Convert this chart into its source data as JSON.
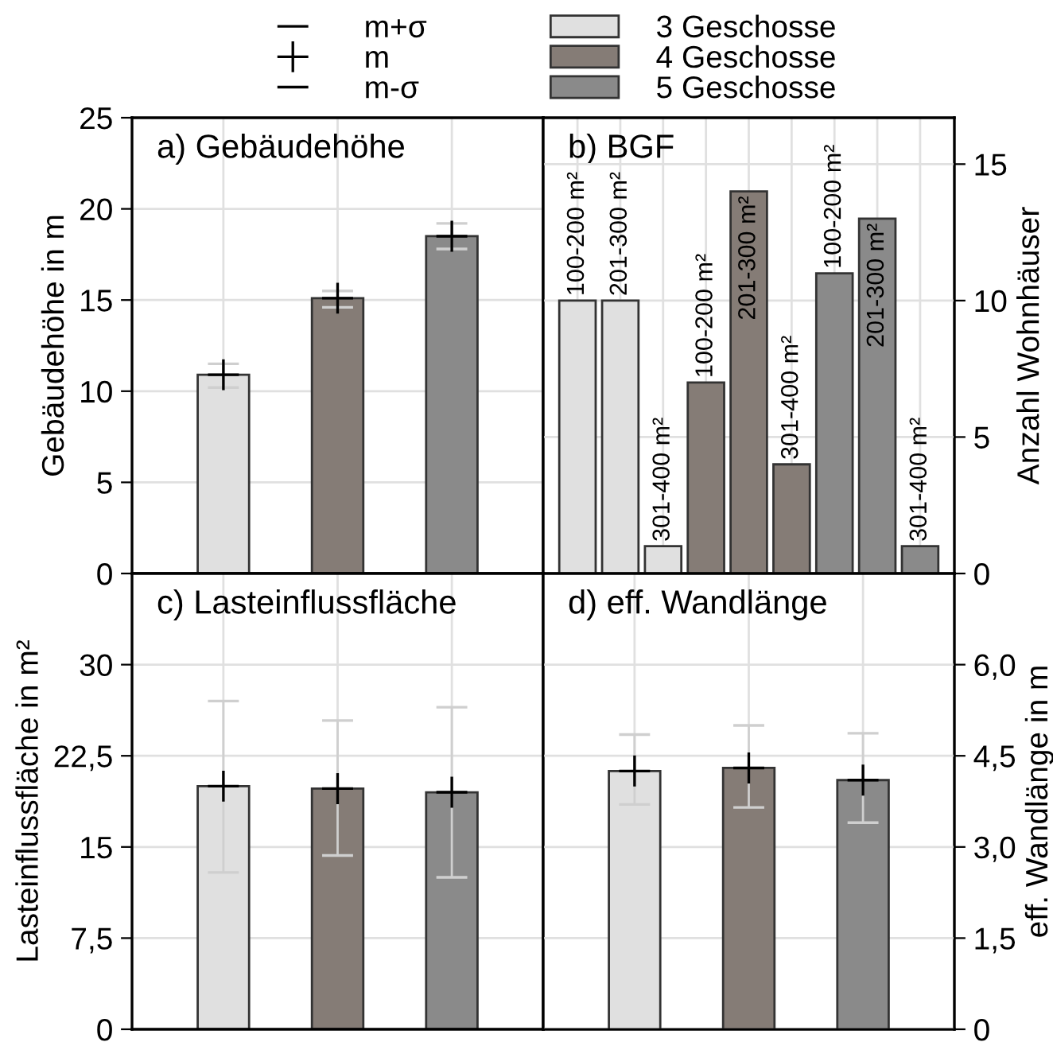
{
  "chart_data": [
    {
      "type": "bar",
      "title": "a) Gebäudehöhe",
      "ylabel": "Gebäudehöhe in m",
      "categories": [
        null,
        null,
        null
      ],
      "ylim": [
        0,
        25
      ],
      "yticks": [
        0,
        5,
        10,
        15,
        20,
        25
      ],
      "grid": true,
      "legend": "top",
      "annotations": [
        "m+σ",
        "m-σ"
      ],
      "series": [
        {
          "name": "3 Geschosse",
          "color": "#e0e0e0",
          "values": [
            10.9,
            null,
            null
          ],
          "errors": [
            [
              10.2,
              11.5
            ],
            null,
            null
          ]
        },
        {
          "name": "4 Geschosse",
          "color": "#857c76",
          "values": [
            null,
            15.1,
            null
          ],
          "errors": [
            null,
            [
              14.6,
              15.5
            ],
            null
          ]
        },
        {
          "name": "5 Geschosse",
          "color": "#8a8a8a",
          "values": [
            null,
            null,
            18.5
          ],
          "errors": [
            null,
            null,
            [
              17.8,
              19.2
            ]
          ]
        },
        {
          "name": "m",
          "type": "scatter",
          "marker": "cross",
          "color": "#000000",
          "values": [
            10.9,
            15.1,
            18.5
          ]
        }
      ]
    },
    {
      "type": "bar",
      "title": "b) BGF",
      "y2label": "Anzahl Wohnhäuser",
      "categories": [
        "100-200 m²",
        "201-300 m²",
        "301-400 m²",
        "100-200 m²",
        "201-300 m²",
        "301-400 m²",
        "100-200 m²",
        "201-300 m²",
        "301-400 m²"
      ],
      "y2lim": [
        0,
        16.7
      ],
      "y2ticks": [
        0,
        5,
        10,
        15
      ],
      "grid": true,
      "series": [
        {
          "axis": "y2",
          "color": "#e0e0e0",
          "values": [
            10,
            10,
            1,
            null,
            null,
            null,
            null,
            null,
            null
          ]
        },
        {
          "axis": "y2",
          "color": "#857c76",
          "values": [
            null,
            null,
            null,
            7,
            14,
            4,
            null,
            null,
            null
          ]
        },
        {
          "axis": "y2",
          "color": "#8a8a8a",
          "values": [
            null,
            null,
            null,
            null,
            null,
            null,
            11,
            13,
            1
          ]
        }
      ]
    },
    {
      "type": "bar",
      "title": "c) Lasteinflussfläche",
      "ylabel": "Lasteinflussfläche in m²",
      "categories": [
        null,
        null,
        null
      ],
      "ylim": [
        0,
        37.5
      ],
      "yticks": [
        0,
        {
          "value": 7.5,
          "label": "7,5"
        },
        15,
        {
          "value": 22.5,
          "label": "22,5"
        },
        30
      ],
      "grid": true,
      "series": [
        {
          "color": "#e0e0e0",
          "values": [
            20.0,
            null,
            null
          ],
          "errors": [
            [
              12.9,
              27.0
            ],
            null,
            null
          ]
        },
        {
          "color": "#857c76",
          "values": [
            null,
            19.8,
            null
          ],
          "errors": [
            null,
            [
              14.3,
              25.4
            ],
            null
          ]
        },
        {
          "color": "#8a8a8a",
          "values": [
            null,
            null,
            19.5
          ],
          "errors": [
            null,
            null,
            [
              12.5,
              26.5
            ]
          ]
        },
        {
          "type": "scatter",
          "marker": "cross",
          "color": "#000000",
          "values": [
            20.0,
            19.8,
            19.5
          ]
        }
      ]
    },
    {
      "type": "bar",
      "title": "d) eff. Wandlänge",
      "y2label": "eff. Wandlänge in m",
      "categories": [
        null,
        null,
        null
      ],
      "y2lim": [
        0,
        7.5
      ],
      "y2ticks": [
        0,
        {
          "value": 1.5,
          "label": "1,5"
        },
        {
          "value": 3.0,
          "label": "3,0"
        },
        {
          "value": 4.5,
          "label": "4,5"
        },
        {
          "value": 6.0,
          "label": "6,0"
        }
      ],
      "grid": true,
      "series": [
        {
          "axis": "y2",
          "color": "#e0e0e0",
          "values": [
            4.25,
            null,
            null
          ],
          "errors": [
            [
              3.7,
              4.85
            ],
            null,
            null
          ]
        },
        {
          "axis": "y2",
          "color": "#857c76",
          "values": [
            null,
            4.3,
            null
          ],
          "errors": [
            null,
            [
              3.65,
              5.0
            ],
            null
          ]
        },
        {
          "axis": "y2",
          "color": "#8a8a8a",
          "values": [
            null,
            null,
            4.1
          ],
          "errors": [
            null,
            null,
            [
              3.4,
              4.87
            ]
          ]
        },
        {
          "type": "scatter",
          "marker": "cross",
          "axis": "y2",
          "color": "#000000",
          "values": [
            4.25,
            4.3,
            4.1
          ]
        }
      ]
    }
  ]
}
